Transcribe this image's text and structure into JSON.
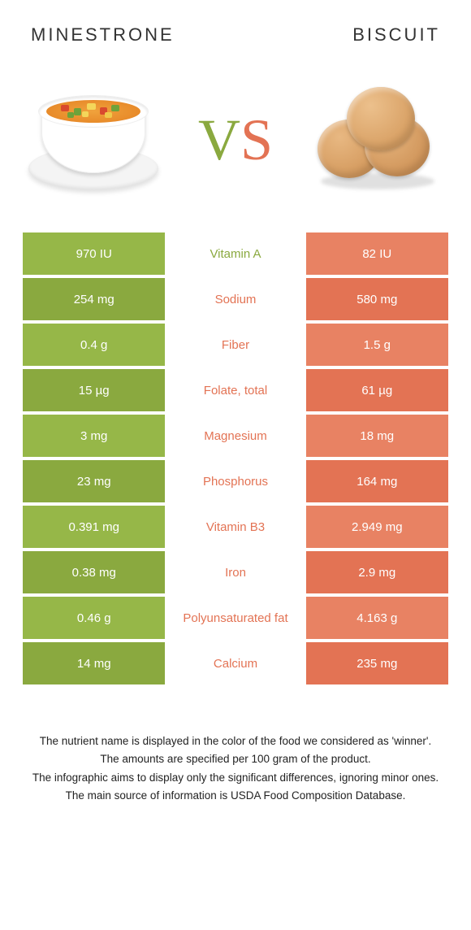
{
  "header": {
    "left_title": "Minestrone",
    "right_title": "Biscuit",
    "vs_v": "V",
    "vs_s": "S"
  },
  "colors": {
    "left_accent": "#8aa93f",
    "right_accent": "#e37354",
    "left_row_primary": "#96b748",
    "left_row_alt": "#8aa93f",
    "right_row_primary": "#e88263",
    "right_row_alt": "#e37354",
    "background": "#ffffff",
    "text_dark": "#222222"
  },
  "rows": [
    {
      "nutrient": "Vitamin A",
      "left": "970 IU",
      "right": "82 IU",
      "winner": "left"
    },
    {
      "nutrient": "Sodium",
      "left": "254 mg",
      "right": "580 mg",
      "winner": "right"
    },
    {
      "nutrient": "Fiber",
      "left": "0.4 g",
      "right": "1.5 g",
      "winner": "right"
    },
    {
      "nutrient": "Folate, total",
      "left": "15 µg",
      "right": "61 µg",
      "winner": "right"
    },
    {
      "nutrient": "Magnesium",
      "left": "3 mg",
      "right": "18 mg",
      "winner": "right"
    },
    {
      "nutrient": "Phosphorus",
      "left": "23 mg",
      "right": "164 mg",
      "winner": "right"
    },
    {
      "nutrient": "Vitamin B3",
      "left": "0.391 mg",
      "right": "2.949 mg",
      "winner": "right"
    },
    {
      "nutrient": "Iron",
      "left": "0.38 mg",
      "right": "2.9 mg",
      "winner": "right"
    },
    {
      "nutrient": "Polyunsaturated fat",
      "left": "0.46 g",
      "right": "4.163 g",
      "winner": "right"
    },
    {
      "nutrient": "Calcium",
      "left": "14 mg",
      "right": "235 mg",
      "winner": "right"
    }
  ],
  "footnotes": [
    "The nutrient name is displayed in the color of the food we considered as 'winner'.",
    "The amounts are specified per 100 gram of the product.",
    "The infographic aims to display only the significant differences, ignoring minor ones.",
    "The main source of information is USDA Food Composition Database."
  ]
}
